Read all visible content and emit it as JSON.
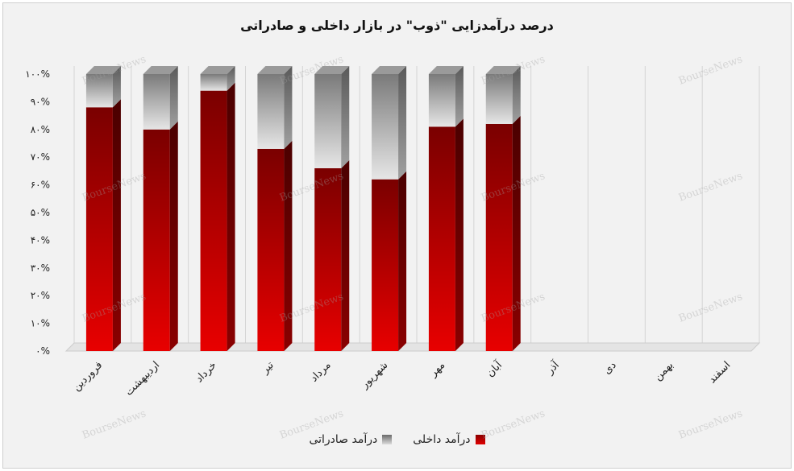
{
  "chart_data": {
    "type": "bar",
    "stacked": true,
    "percent": true,
    "title": "درصد درآمدزایی \"ذوب\" در بازار داخلی و صادراتی",
    "categories": [
      "فروردین",
      "اردیبهشت",
      "خرداد",
      "تیر",
      "مرداد",
      "شهریور",
      "مهر",
      "آبان",
      "آذر",
      "دی",
      "بهمن",
      "اسفند"
    ],
    "series": [
      {
        "name": "درآمد داخلی",
        "color": "#c00000",
        "values": [
          88,
          80,
          94,
          73,
          66,
          62,
          81,
          82,
          null,
          null,
          null,
          null
        ]
      },
      {
        "name": "درآمد صادراتی",
        "color": "#a6a6a6",
        "values": [
          12,
          20,
          6,
          27,
          34,
          38,
          19,
          18,
          null,
          null,
          null,
          null
        ]
      }
    ],
    "yticks": [
      "۰%",
      "۱۰%",
      "۲۰%",
      "۳۰%",
      "۴۰%",
      "۵۰%",
      "۶۰%",
      "۷۰%",
      "۸۰%",
      "۹۰%",
      "۱۰۰%"
    ],
    "ylim": [
      0,
      100
    ],
    "legend_position": "bottom",
    "grid": true
  },
  "legend": {
    "domestic_label": "درآمد داخلی",
    "export_label": "درآمد صادراتی",
    "domestic_color": "#c00000",
    "export_color": "#a6a6a6"
  },
  "watermark": "BourseNews"
}
